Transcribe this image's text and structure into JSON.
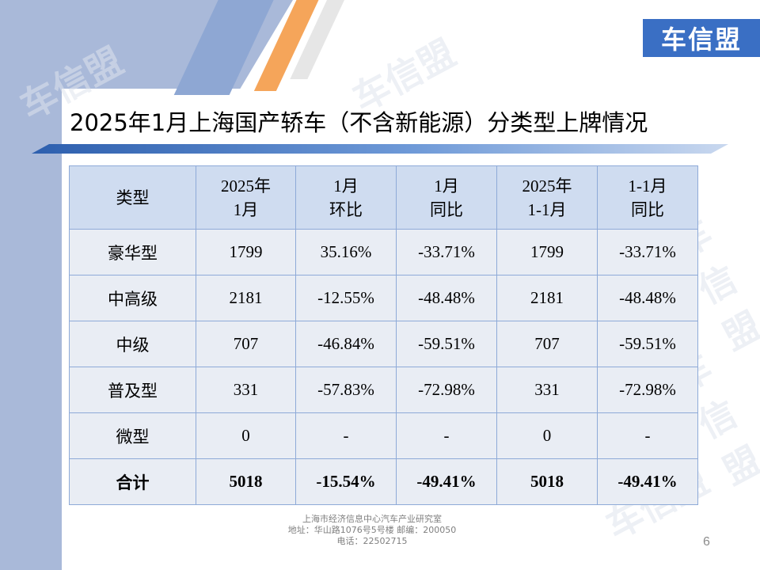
{
  "brand": {
    "logo_text": "车信盟",
    "watermark_text": "车信盟"
  },
  "slide": {
    "title": "2025年1月上海国产轿车（不含新能源）分类型上牌情况",
    "page_number": "6"
  },
  "table": {
    "headers": [
      [
        "类型"
      ],
      [
        "2025年",
        "1月"
      ],
      [
        "1月",
        "环比"
      ],
      [
        "1月",
        "同比"
      ],
      [
        "2025年",
        "1-1月"
      ],
      [
        "1-1月",
        "同比"
      ]
    ],
    "rows": [
      [
        "豪华型",
        "1799",
        "35.16%",
        "-33.71%",
        "1799",
        "-33.71%"
      ],
      [
        "中高级",
        "2181",
        "-12.55%",
        "-48.48%",
        "2181",
        "-48.48%"
      ],
      [
        "中级",
        "707",
        "-46.84%",
        "-59.51%",
        "707",
        "-59.51%"
      ],
      [
        "普及型",
        "331",
        "-57.83%",
        "-72.98%",
        "331",
        "-72.98%"
      ],
      [
        "微型",
        "0",
        "-",
        "-",
        "0",
        "-"
      ],
      [
        "合计",
        "5018",
        "-15.54%",
        "-49.41%",
        "5018",
        "-49.41%"
      ]
    ]
  },
  "footer": {
    "line1": "上海市经济信息中心汽车产业研究室",
    "line2": "地址：华山路1076号5号楼    邮编：200050",
    "line3": "电话：22502715"
  },
  "colors": {
    "header_bg": "#cfdcf0",
    "body_bg": "#e9edf4",
    "border": "#8eaad8",
    "logo_bg": "#3a6fc4",
    "accent_orange": "#f5a55a"
  }
}
